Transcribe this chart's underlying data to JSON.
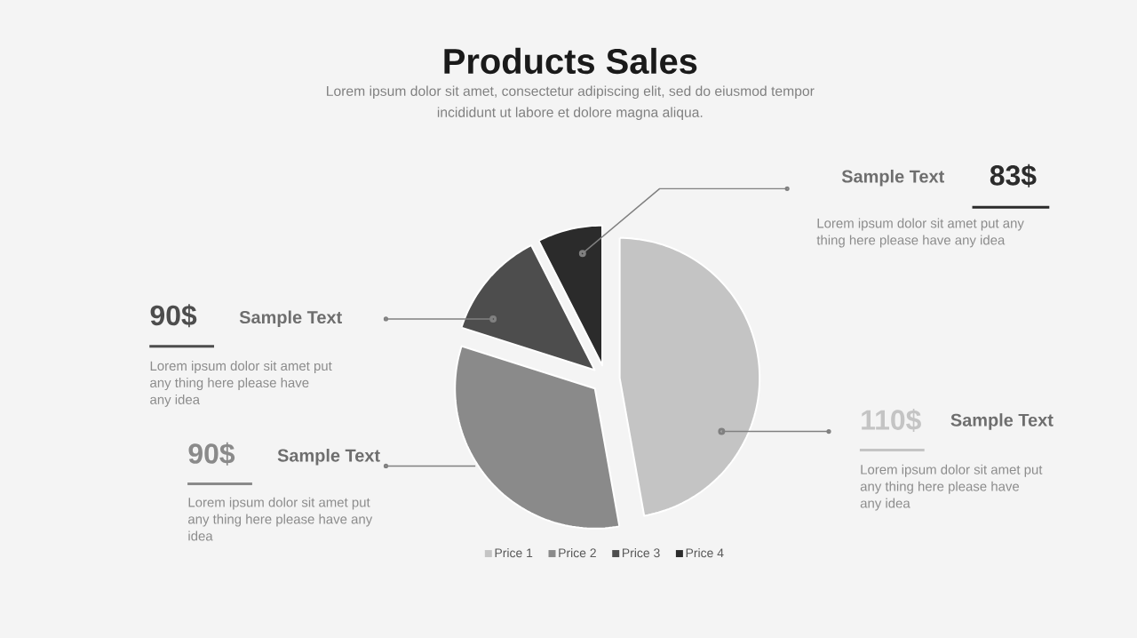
{
  "chart_data": {
    "type": "pie",
    "title": "Products Sales",
    "subtitle": "Lorem ipsum dolor sit amet, consectetur adipiscing elit, sed do eiusmod tempor incididunt ut labore et dolore magna aliqua.",
    "categories": [
      "Price 1",
      "Price 2",
      "Price 3",
      "Price 4"
    ],
    "values": [
      47.2,
      32.7,
      12.6,
      7.5
    ],
    "colors": [
      "#c4c4c4",
      "#8a8a8a",
      "#4d4d4d",
      "#2b2b2b"
    ],
    "legend": "bottom",
    "annotations": [
      "110$",
      "Sample Text",
      "Lorem ipsum dolor sit amet put any thing here please have any idea",
      "90$",
      "Sample Text",
      "Lorem ipsum dolor sit amet put any thing here please have any idea",
      "90$",
      "Sample Text",
      "Lorem ipsum dolor sit amet put any thing here please have any idea",
      "83$",
      "Sample Text",
      "Lorem ipsum dolor sit amet put any thing here please have any idea"
    ]
  }
}
